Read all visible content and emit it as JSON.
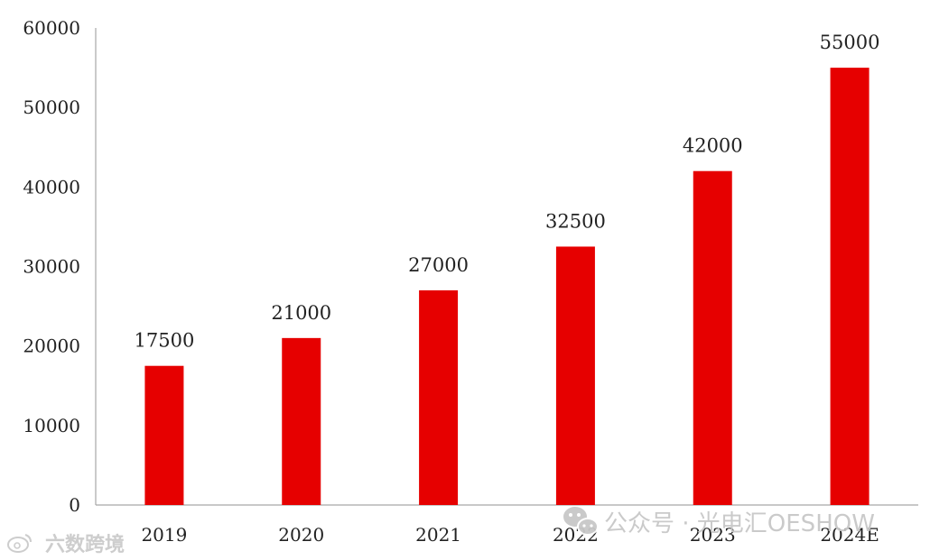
{
  "chart_data": {
    "type": "bar",
    "title": "",
    "xlabel": "",
    "ylabel": "",
    "categories": [
      "2019",
      "2020",
      "2021",
      "2022",
      "2023",
      "2024E"
    ],
    "values": [
      17500,
      21000,
      27000,
      32500,
      42000,
      55000
    ],
    "data_labels": [
      "17500",
      "21000",
      "27000",
      "32500",
      "42000",
      "55000"
    ],
    "ylim": [
      0,
      60000
    ],
    "yticks": [
      0,
      10000,
      20000,
      30000,
      40000,
      50000,
      60000
    ],
    "ytick_labels": [
      "0",
      "10000",
      "20000",
      "30000",
      "40000",
      "50000",
      "60000"
    ],
    "grid": false,
    "legend": "none",
    "bar_color": "#e60000",
    "axis_color": "#a6a6a6"
  },
  "watermarks": {
    "left": "六数跨境",
    "right": "公众号 · 光电汇OESHOW",
    "icon_left": "weibo-logo-icon",
    "icon_right": "wechat-logo-icon"
  }
}
